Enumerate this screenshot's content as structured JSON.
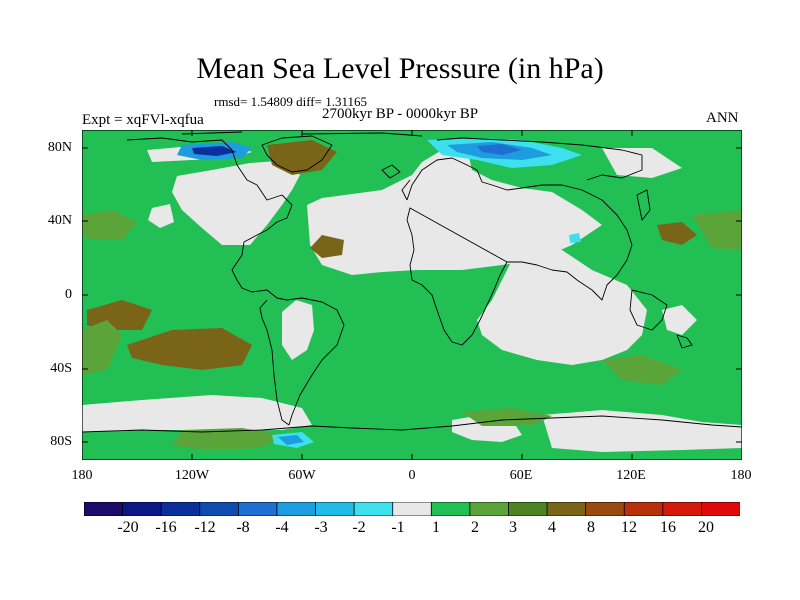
{
  "title": "Mean Sea Level Pressure (in hPa)",
  "stats_line": "rmsd= 1.54809 diff= 1.31165",
  "period_line": "2700kyr BP - 0000kyr BP",
  "expt_label": "Expt = xqFVl-xqfua",
  "season": "ANN",
  "lat_ticks": [
    "80N",
    "40N",
    "0",
    "40S",
    "80S"
  ],
  "lon_ticks": [
    "180",
    "120W",
    "60W",
    "0",
    "60E",
    "120E",
    "180"
  ],
  "colorbar": {
    "labels": [
      "-20",
      "-16",
      "-12",
      "-8",
      "-4",
      "-3",
      "-2",
      "-1",
      "1",
      "2",
      "3",
      "4",
      "8",
      "12",
      "16",
      "20"
    ],
    "colors": [
      "#1b0c6b",
      "#0a1888",
      "#0c2f9e",
      "#0e4cb0",
      "#1f6fd2",
      "#1d9ce0",
      "#22bbe6",
      "#3fe0ee",
      "#e8e8e8",
      "#22bf55",
      "#5aa43a",
      "#4c8422",
      "#7a6418",
      "#9a4a10",
      "#b9300c",
      "#d41b0b",
      "#e00808"
    ]
  },
  "colors": {
    "ocean_positive": "#22bf55",
    "land_near_zero": "#e8e8e8",
    "brown_high": "#7a6418",
    "olive": "#5aa43a",
    "blue_low": "#1f6fd2",
    "cyan_low": "#3fe0ee"
  }
}
